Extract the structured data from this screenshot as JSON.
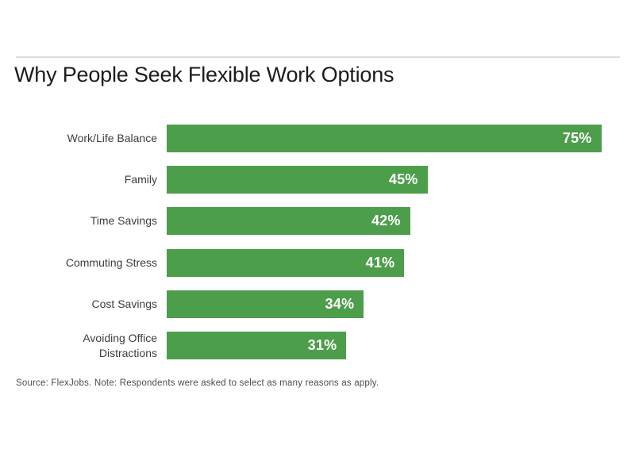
{
  "page": {
    "title": "Why People Seek Flexible Work Options",
    "source_note": "Source: FlexJobs. Note: Respondents were asked to select as many reasons as apply."
  },
  "colors": {
    "background": "#ffffff",
    "bar_green": "#4d9e4b",
    "title_text": "#1c1c1c",
    "label_text": "#3d3d3d",
    "value_text": "#ffffff",
    "source_text": "#4b4b4b",
    "rule": "#dcdcdc"
  },
  "chart_data": {
    "type": "bar",
    "orientation": "horizontal",
    "title": "Why People Seek Flexible Work Options",
    "categories": [
      "Work/Life Balance",
      "Family",
      "Time Savings",
      "Commuting Stress",
      "Cost Savings",
      "Avoiding Office\nDistractions"
    ],
    "values": [
      75,
      45,
      42,
      41,
      34,
      31
    ],
    "value_labels": [
      "75%",
      "45%",
      "42%",
      "41%",
      "34%",
      "31%"
    ],
    "xlabel": "",
    "ylabel": "",
    "xlim": [
      0,
      100
    ],
    "grid": false,
    "legend": false,
    "value_label_position": "inside-end",
    "source_note": "Source: FlexJobs. Note: Respondents were asked to select as many reasons as apply."
  }
}
